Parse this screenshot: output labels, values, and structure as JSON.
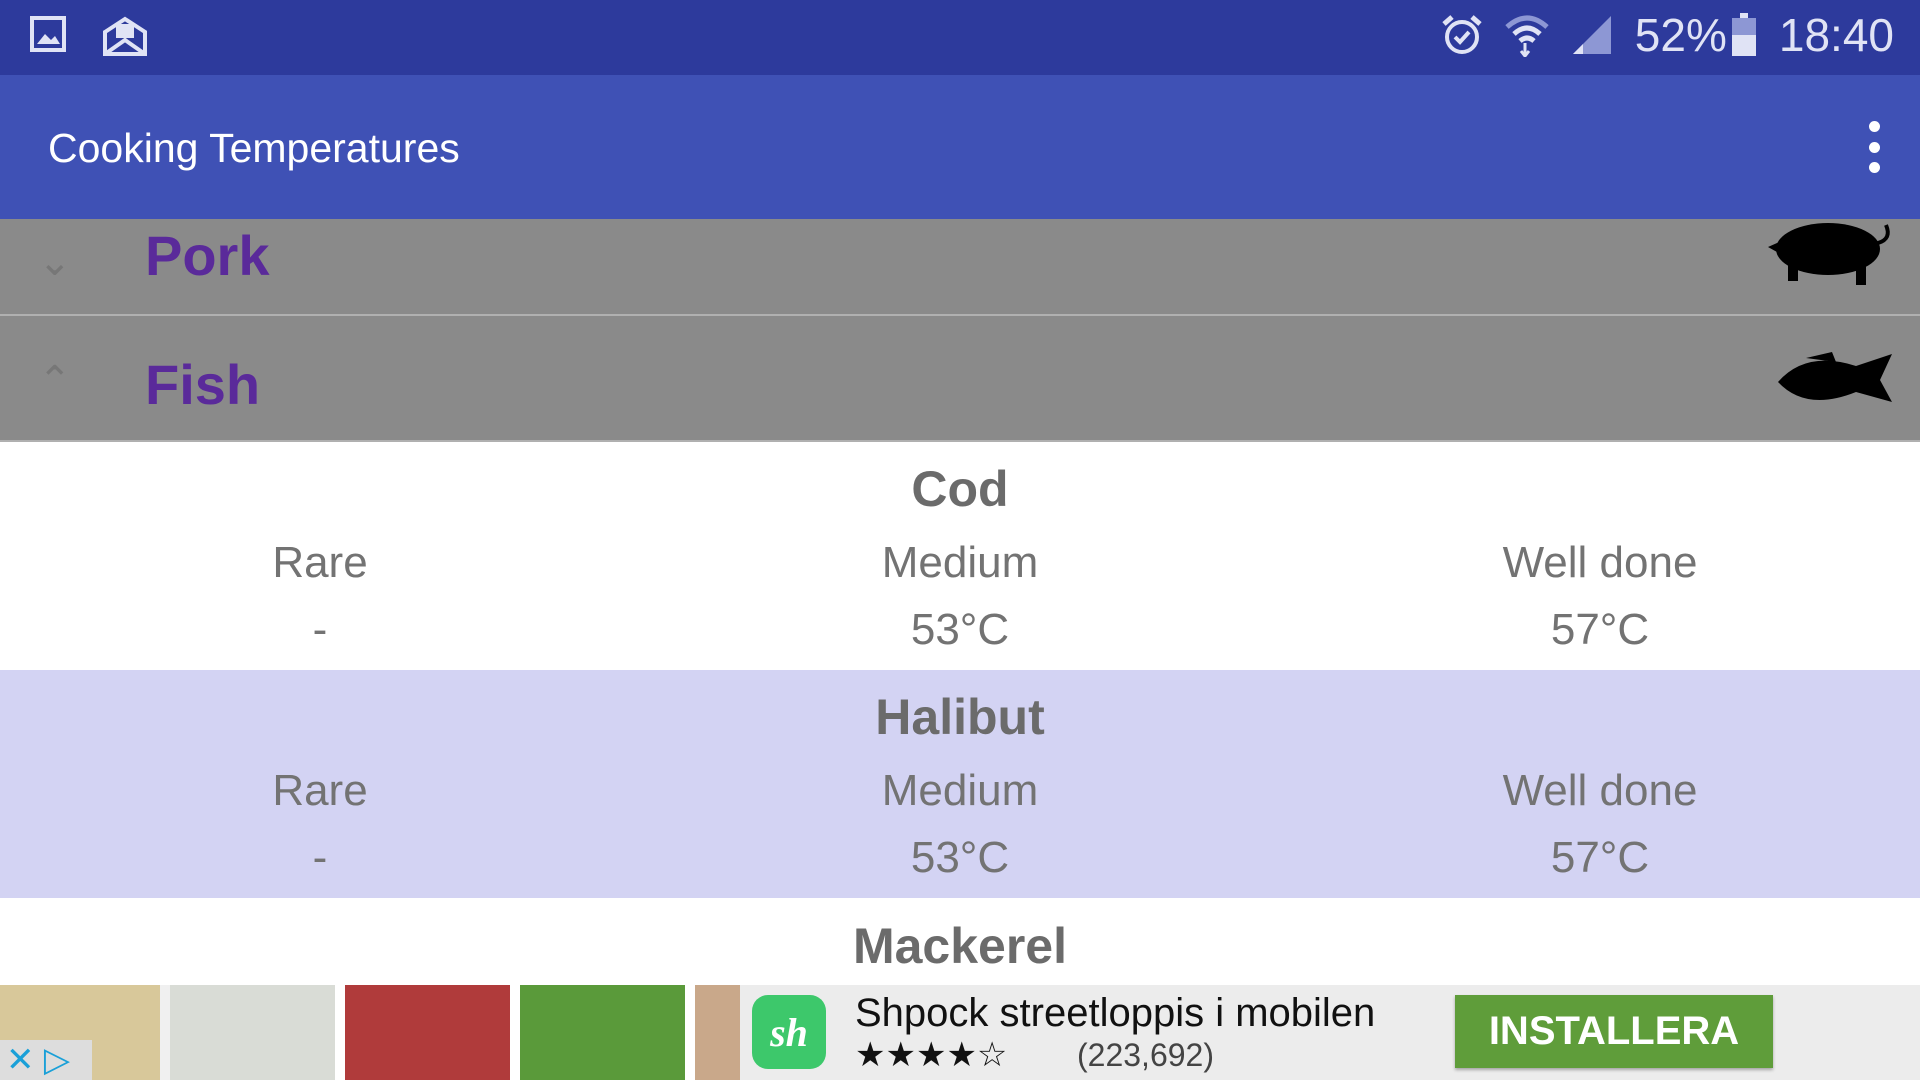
{
  "status_bar": {
    "battery": "52%",
    "time": "18:40",
    "icons": [
      "gallery-icon",
      "mail-icon",
      "alarm-icon",
      "wifi-icon",
      "signal-icon",
      "battery-icon"
    ]
  },
  "app_bar": {
    "title": "Cooking Temperatures",
    "menu_icon": "more-vert-icon"
  },
  "groups": [
    {
      "name": "Pork",
      "expanded": false,
      "icon": "pig-icon"
    },
    {
      "name": "Fish",
      "expanded": true,
      "icon": "fish-icon"
    }
  ],
  "items": [
    {
      "name": "Cod",
      "rare_label": "Rare",
      "rare": "-",
      "medium_label": "Medium",
      "medium": "53°C",
      "well_label": "Well done",
      "well": "57°C"
    },
    {
      "name": "Halibut",
      "rare_label": "Rare",
      "rare": "-",
      "medium_label": "Medium",
      "medium": "53°C",
      "well_label": "Well done",
      "well": "57°C"
    },
    {
      "name": "Mackerel"
    }
  ],
  "ad": {
    "title": "Shpock streetloppis i mobilen",
    "rating": 4.5,
    "stars": "★★★★☆",
    "reviews": "(223,692)",
    "button": "INSTALLERA",
    "logo": "sh",
    "colors": {
      "logo": "#3dc86b",
      "button": "#5f9d3a"
    }
  },
  "colors": {
    "status": "#2d3a9c",
    "appbar": "#3f51b5",
    "group": "#8a8a8a",
    "group_text": "#5a2a9a",
    "alt_row": "#d3d3f3"
  }
}
